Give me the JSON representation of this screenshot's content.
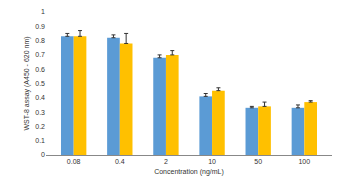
{
  "chart_data": {
    "type": "bar",
    "x_label": "Concentration (ng/mL)",
    "y_label": "WST-8 assay (A450 - 620 nm)",
    "categories": [
      "0.08",
      "0.4",
      "2",
      "10",
      "50",
      "100"
    ],
    "series": [
      {
        "color": "#5b9bd5",
        "values": [
          0.83,
          0.82,
          0.68,
          0.41,
          0.33,
          0.33
        ],
        "errors": [
          0.02,
          0.02,
          0.02,
          0.02,
          0.01,
          0.02
        ]
      },
      {
        "color": "#ffc000",
        "values": [
          0.83,
          0.78,
          0.7,
          0.45,
          0.34,
          0.37
        ],
        "errors": [
          0.04,
          0.07,
          0.03,
          0.02,
          0.03,
          0.01
        ]
      }
    ],
    "ylim": [
      0,
      1
    ],
    "yticks": [
      0,
      0.1,
      0.2,
      0.3,
      0.4,
      0.5,
      0.6,
      0.7,
      0.8,
      0.9,
      1
    ],
    "grid": false
  }
}
